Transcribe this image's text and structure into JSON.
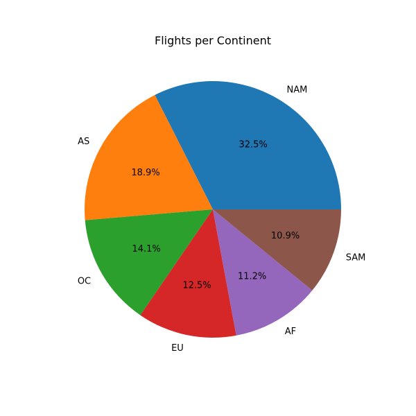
{
  "chart_data": {
    "type": "pie",
    "title": "Flights per Continent",
    "categories": [
      "NAM",
      "AS",
      "OC",
      "EU",
      "AF",
      "SAM"
    ],
    "values": [
      32.5,
      18.9,
      14.1,
      12.5,
      11.2,
      10.9
    ],
    "percent_labels": [
      "32.5%",
      "18.9%",
      "14.1%",
      "12.5%",
      "11.2%",
      "10.9%"
    ],
    "colors": [
      "#1f77b4",
      "#ff7f0e",
      "#2ca02c",
      "#d62728",
      "#9467bd",
      "#8c564b"
    ],
    "start_angle_deg": 0,
    "direction": "counterclockwise"
  }
}
